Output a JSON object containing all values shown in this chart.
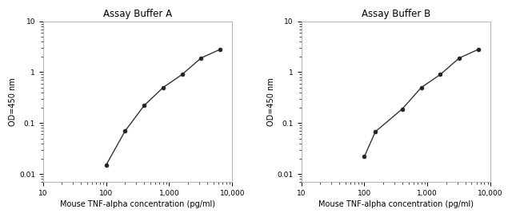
{
  "title_A": "Assay Buffer A",
  "title_B": "Assay Buffer B",
  "xlabel": "Mouse TNF-alpha concentration (pg/ml)",
  "ylabel": "OD=450 nm",
  "xlim": [
    10,
    10000
  ],
  "ylim": [
    0.007,
    10
  ],
  "x_ticks": [
    10,
    100,
    1000,
    10000
  ],
  "x_tick_labels": [
    "10",
    "100",
    "1,000",
    "10,000"
  ],
  "y_ticks": [
    0.01,
    0.1,
    1,
    10
  ],
  "y_tick_labels": [
    "0.01",
    "0.1",
    "1",
    "10"
  ],
  "data_A_x": [
    100,
    200,
    400,
    800,
    1600,
    3200,
    6400
  ],
  "data_A_y": [
    0.015,
    0.07,
    0.22,
    0.5,
    0.9,
    1.9,
    2.8
  ],
  "data_B_x": [
    100,
    150,
    400,
    800,
    1600,
    3200,
    6400
  ],
  "data_B_y": [
    0.022,
    0.068,
    0.19,
    0.5,
    0.9,
    1.9,
    2.8
  ],
  "line_color": "#333333",
  "marker_color": "#222222",
  "bg_color": "#ffffff",
  "fig_bg": "#ffffff"
}
